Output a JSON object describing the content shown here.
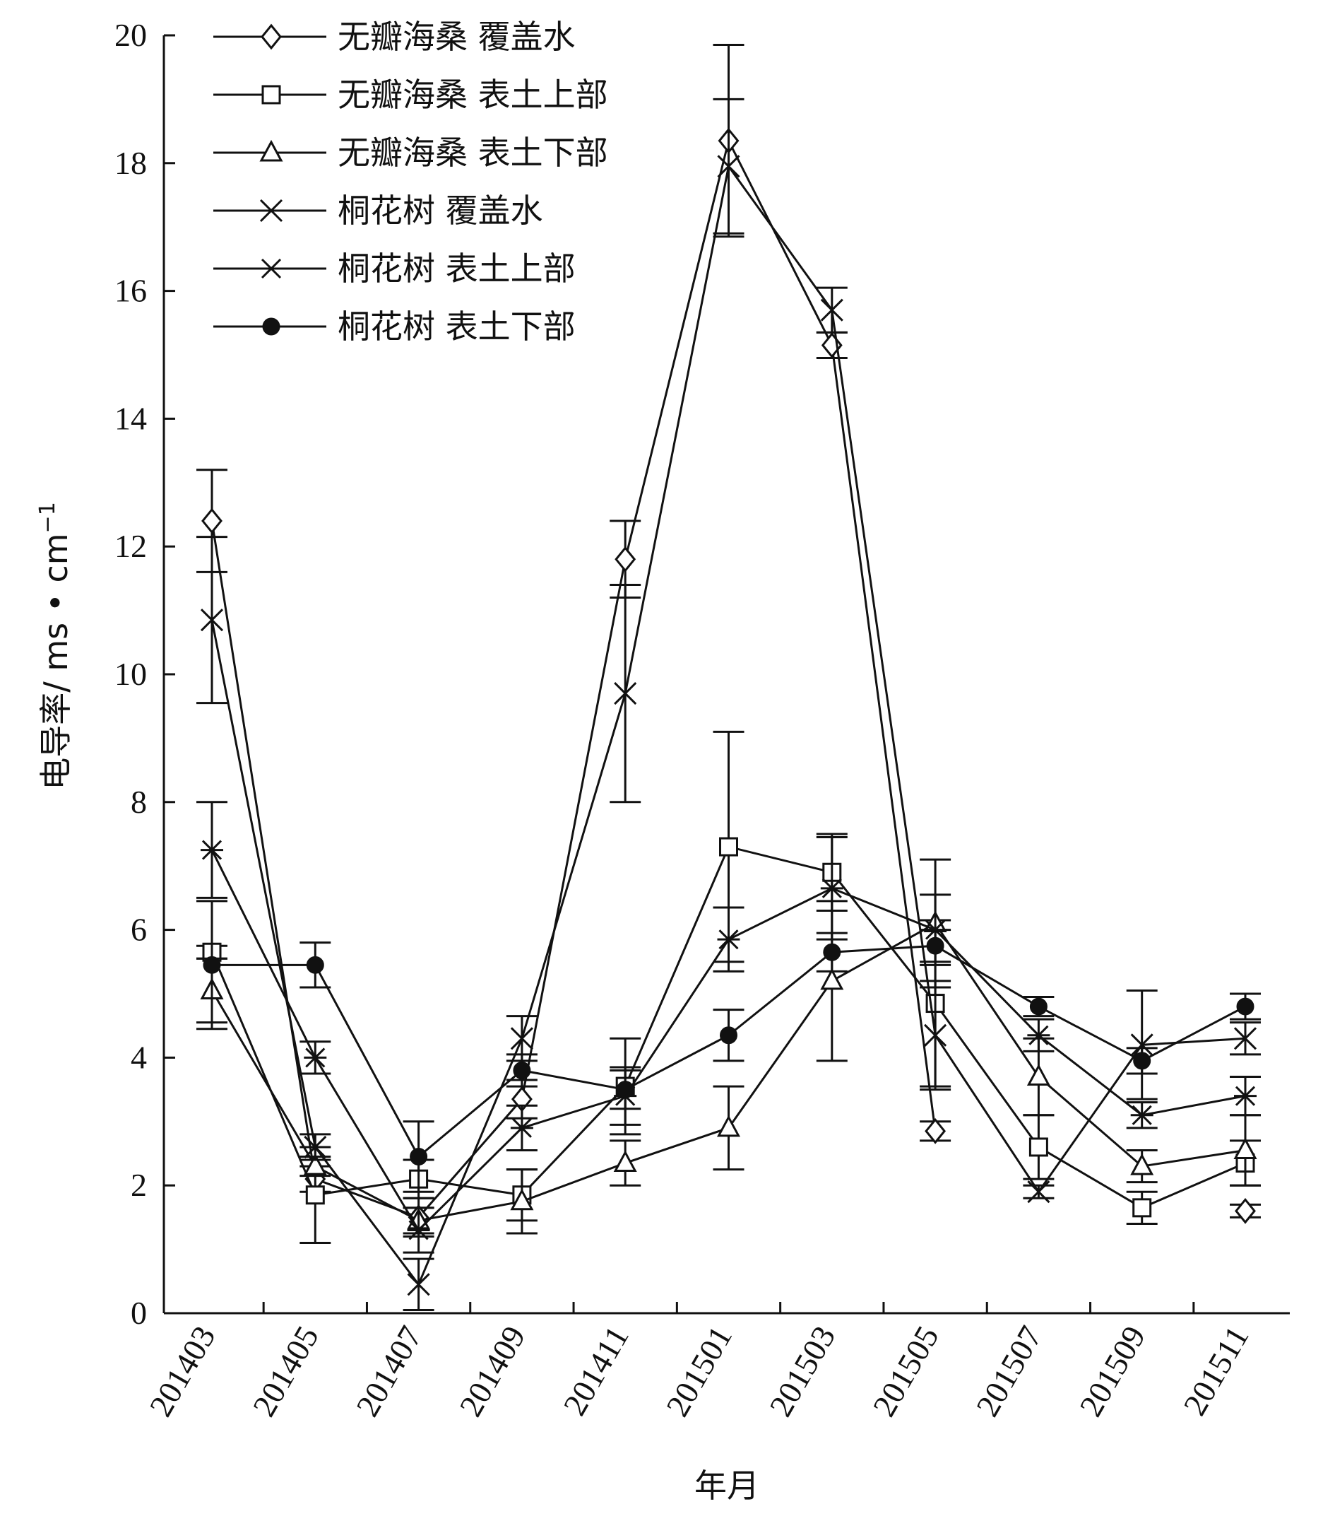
{
  "chart_data": {
    "type": "line",
    "xlabel": "年月",
    "ylabel": "电导率/ ms • cm",
    "ylabel_sup": "−1",
    "ylim": [
      0,
      20
    ],
    "yticks": [
      0,
      2,
      4,
      6,
      8,
      10,
      12,
      14,
      16,
      18,
      20
    ],
    "categories": [
      "201403",
      "201405",
      "201407",
      "201409",
      "201411",
      "201501",
      "201503",
      "201505",
      "201507",
      "201509",
      "201511"
    ],
    "legend_position": "top-left",
    "grid": false,
    "series": [
      {
        "name": "无瓣海桑 覆盖水",
        "marker": "diamond",
        "values": [
          12.4,
          2.1,
          1.5,
          3.35,
          11.8,
          18.35,
          15.15,
          2.85,
          null,
          null,
          1.6
        ],
        "errors": [
          0.8,
          0.2,
          0.3,
          0.3,
          0.6,
          1.5,
          0.2,
          0.15,
          null,
          null,
          0.1
        ]
      },
      {
        "name": "无瓣海桑 表土上部",
        "marker": "square",
        "values": [
          5.65,
          1.85,
          2.1,
          1.85,
          3.55,
          7.3,
          6.9,
          4.85,
          2.6,
          1.65,
          2.35
        ],
        "errors": [
          0.1,
          0.75,
          0.3,
          0.4,
          0.75,
          1.8,
          0.6,
          1.3,
          0.5,
          0.25,
          0.35
        ]
      },
      {
        "name": "无瓣海桑 表土下部",
        "marker": "triangle",
        "values": [
          5.05,
          2.3,
          1.45,
          1.75,
          2.35,
          2.9,
          5.2,
          6.1,
          3.7,
          2.3,
          2.55
        ],
        "errors": [
          0.5,
          0.15,
          0.2,
          0.5,
          0.35,
          0.65,
          1.25,
          1.0,
          0.6,
          0.25,
          0.55
        ]
      },
      {
        "name": "桐花树 覆盖水",
        "marker": "x",
        "values": [
          10.85,
          2.6,
          0.45,
          4.3,
          9.7,
          17.95,
          15.7,
          4.35,
          1.9,
          4.2,
          4.3
        ],
        "errors": [
          1.3,
          0.2,
          0.4,
          0.35,
          1.7,
          1.05,
          0.35,
          0.85,
          0.1,
          0.85,
          0.25
        ]
      },
      {
        "name": "桐花树 表土上部",
        "marker": "asterisk",
        "values": [
          7.25,
          4.0,
          1.3,
          2.9,
          3.4,
          5.85,
          6.65,
          6.0,
          4.35,
          3.1,
          3.4
        ],
        "errors": [
          0.75,
          0.25,
          0.35,
          0.35,
          0.45,
          0.5,
          0.8,
          0.55,
          0.25,
          0.2,
          0.3
        ]
      },
      {
        "name": "桐花树 表土下部",
        "marker": "dot",
        "values": [
          5.45,
          5.45,
          2.45,
          3.8,
          3.5,
          4.35,
          5.65,
          5.75,
          4.8,
          3.95,
          4.8
        ],
        "errors": [
          1.0,
          0.35,
          0.55,
          0.25,
          0.3,
          0.4,
          0.3,
          0.25,
          0.15,
          0.2,
          0.2
        ]
      }
    ]
  }
}
